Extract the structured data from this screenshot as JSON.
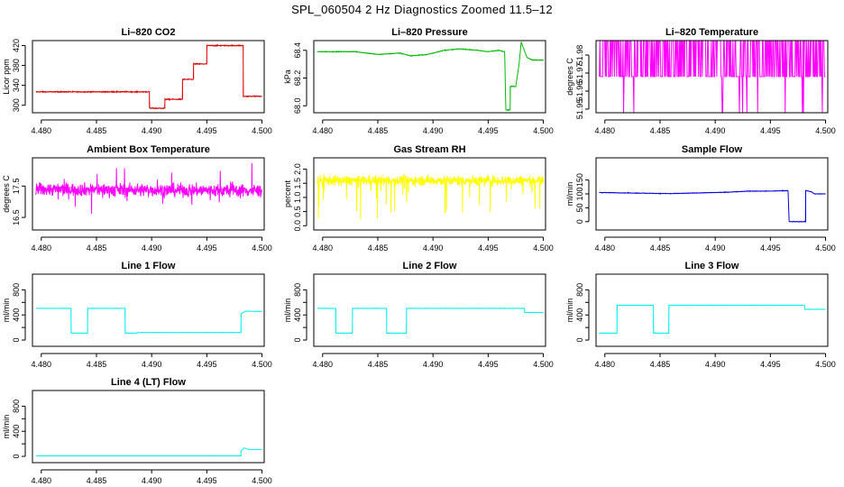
{
  "suptitle": "SPL_060504  2 Hz Diagnostics Zoomed 11.5–12",
  "x_tick_labels": [
    "4.480",
    "4.485",
    "4.490",
    "4.495",
    "4.500"
  ],
  "chart_data": [
    {
      "type": "line",
      "title": "Li–820 CO2",
      "ylabel": "Licor ppm",
      "color": "#dd0000",
      "xlim": [
        4.4792,
        4.5002
      ],
      "ylim": [
        285,
        430
      ],
      "yticks": [
        300,
        340,
        380,
        420
      ],
      "ytick_labels": [
        "300",
        "340",
        "380",
        "420"
      ],
      "noise": 1.5,
      "points": [
        [
          4.4795,
          327
        ],
        [
          4.4898,
          327
        ],
        [
          4.4898,
          294
        ],
        [
          4.4912,
          294
        ],
        [
          4.4912,
          312
        ],
        [
          4.4928,
          312
        ],
        [
          4.4928,
          352
        ],
        [
          4.4938,
          352
        ],
        [
          4.4938,
          383
        ],
        [
          4.495,
          383
        ],
        [
          4.495,
          420
        ],
        [
          4.4983,
          420
        ],
        [
          4.4983,
          318
        ],
        [
          4.5,
          318
        ]
      ]
    },
    {
      "type": "line",
      "title": "Li–820 Pressure",
      "ylabel": "kPa",
      "color": "#00bb00",
      "xlim": [
        4.4792,
        4.5002
      ],
      "ylim": [
        67.95,
        68.47
      ],
      "yticks": [
        68.0,
        68.2,
        68.4
      ],
      "ytick_labels": [
        "68.0",
        "68.2",
        "68.4"
      ],
      "noise": 0.004,
      "points": [
        [
          4.4795,
          68.39
        ],
        [
          4.483,
          68.39
        ],
        [
          4.485,
          68.37
        ],
        [
          4.487,
          68.38
        ],
        [
          4.488,
          68.36
        ],
        [
          4.4895,
          68.37
        ],
        [
          4.491,
          68.4
        ],
        [
          4.4925,
          68.41
        ],
        [
          4.494,
          68.4
        ],
        [
          4.495,
          68.39
        ],
        [
          4.496,
          68.4
        ],
        [
          4.4965,
          68.39
        ],
        [
          4.4966,
          67.97
        ],
        [
          4.497,
          67.97
        ],
        [
          4.497,
          68.14
        ],
        [
          4.4975,
          68.14
        ],
        [
          4.4978,
          68.3
        ],
        [
          4.498,
          68.46
        ],
        [
          4.4985,
          68.35
        ],
        [
          4.499,
          68.33
        ],
        [
          4.5,
          68.33
        ]
      ]
    },
    {
      "type": "line",
      "title": "Li–820 Temperature",
      "ylabel": "degrees C",
      "color": "#ff00ff",
      "xlim": [
        4.4792,
        4.5002
      ],
      "ylim": [
        51.948,
        51.988
      ],
      "yticks": [
        51.95,
        51.96,
        51.97,
        51.98
      ],
      "ytick_labels": [
        "51.95",
        "51.96",
        "51.97",
        "51.98"
      ],
      "quantized": [
        51.988,
        51.968,
        51.948
      ],
      "weights": [
        0.55,
        0.42,
        0.03
      ]
    },
    {
      "type": "line",
      "title": "Ambient Box Temperature",
      "ylabel": "degrees C",
      "color": "#ff00ff",
      "xlim": [
        4.4792,
        4.5002
      ],
      "ylim": [
        16.1,
        18.4
      ],
      "yticks": [
        16.5,
        17.5
      ],
      "ytick_labels": [
        "16.5",
        "17.5"
      ],
      "noise": 0.35,
      "points": [
        [
          4.4795,
          17.4
        ],
        [
          4.5,
          17.35
        ]
      ]
    },
    {
      "type": "line",
      "title": "Gas Stream RH",
      "ylabel": "percent",
      "color": "#ffff00",
      "xlim": [
        4.4792,
        4.5002
      ],
      "ylim": [
        -0.15,
        2.4
      ],
      "yticks": [
        0.0,
        0.5,
        1.0,
        1.5,
        2.0
      ],
      "ytick_labels": [
        "0.0",
        "0.5",
        "1.0",
        "1.5",
        "2.0"
      ],
      "noise": 0.3,
      "points": [
        [
          4.4795,
          1.6
        ],
        [
          4.5,
          1.6
        ]
      ]
    },
    {
      "type": "line",
      "title": "Sample Flow",
      "ylabel": "ml/min",
      "color": "#0000dd",
      "xlim": [
        4.4792,
        4.5002
      ],
      "ylim": [
        -30,
        230
      ],
      "yticks": [
        0,
        50,
        100,
        150
      ],
      "ytick_labels": [
        "0",
        "50",
        "100",
        "150"
      ],
      "noise": 1.5,
      "points": [
        [
          4.4795,
          105
        ],
        [
          4.486,
          101
        ],
        [
          4.488,
          103
        ],
        [
          4.491,
          106
        ],
        [
          4.493,
          110
        ],
        [
          4.495,
          110
        ],
        [
          4.4966,
          112
        ],
        [
          4.4967,
          0
        ],
        [
          4.4982,
          0
        ],
        [
          4.4982,
          112
        ],
        [
          4.4987,
          108
        ],
        [
          4.499,
          100
        ],
        [
          4.5,
          100
        ]
      ]
    },
    {
      "type": "line",
      "title": "Line 1 Flow",
      "ylabel": "ml/min",
      "color": "#00eeee",
      "xlim": [
        4.4792,
        4.5002
      ],
      "ylim": [
        -100,
        1050
      ],
      "yticks": [
        0,
        200,
        400,
        600,
        800
      ],
      "ytick_labels": [
        "0",
        "",
        "400",
        "",
        "800"
      ],
      "noise": 4,
      "points": [
        [
          4.4795,
          505
        ],
        [
          4.4827,
          505
        ],
        [
          4.4827,
          110
        ],
        [
          4.4842,
          110
        ],
        [
          4.4842,
          505
        ],
        [
          4.4876,
          505
        ],
        [
          4.4876,
          110
        ],
        [
          4.4887,
          110
        ],
        [
          4.4887,
          120
        ],
        [
          4.4981,
          120
        ],
        [
          4.4981,
          420
        ],
        [
          4.4985,
          460
        ],
        [
          4.5,
          455
        ]
      ]
    },
    {
      "type": "line",
      "title": "Line 2 Flow",
      "ylabel": "ml/min",
      "color": "#00eeee",
      "xlim": [
        4.4792,
        4.5002
      ],
      "ylim": [
        -100,
        1050
      ],
      "yticks": [
        0,
        200,
        400,
        600,
        800
      ],
      "ytick_labels": [
        "0",
        "",
        "400",
        "",
        "800"
      ],
      "noise": 4,
      "points": [
        [
          4.4795,
          505
        ],
        [
          4.4812,
          505
        ],
        [
          4.4812,
          110
        ],
        [
          4.4827,
          110
        ],
        [
          4.4827,
          505
        ],
        [
          4.4858,
          505
        ],
        [
          4.4858,
          110
        ],
        [
          4.4876,
          110
        ],
        [
          4.4876,
          505
        ],
        [
          4.4983,
          505
        ],
        [
          4.4983,
          440
        ],
        [
          4.5,
          440
        ]
      ]
    },
    {
      "type": "line",
      "title": "Line 3 Flow",
      "ylabel": "ml/min",
      "color": "#00eeee",
      "xlim": [
        4.4792,
        4.5002
      ],
      "ylim": [
        -100,
        1050
      ],
      "yticks": [
        0,
        200,
        400,
        600,
        800
      ],
      "ytick_labels": [
        "0",
        "",
        "400",
        "",
        "800"
      ],
      "noise": 4,
      "points": [
        [
          4.4795,
          110
        ],
        [
          4.4811,
          110
        ],
        [
          4.4811,
          555
        ],
        [
          4.4844,
          555
        ],
        [
          4.4844,
          110
        ],
        [
          4.4858,
          110
        ],
        [
          4.4858,
          555
        ],
        [
          4.4981,
          555
        ],
        [
          4.4981,
          490
        ],
        [
          4.5,
          490
        ]
      ]
    },
    {
      "type": "line",
      "title": "Line 4 (LT) Flow",
      "ylabel": "ml/min",
      "color": "#00eeee",
      "xlim": [
        4.4792,
        4.5002
      ],
      "ylim": [
        -100,
        1050
      ],
      "yticks": [
        0,
        200,
        400,
        600,
        800
      ],
      "ytick_labels": [
        "0",
        "",
        "400",
        "",
        "800"
      ],
      "noise": 1,
      "points": [
        [
          4.4795,
          8
        ],
        [
          4.4981,
          8
        ],
        [
          4.4981,
          90
        ],
        [
          4.4984,
          135
        ],
        [
          4.4988,
          110
        ],
        [
          4.5,
          110
        ]
      ]
    }
  ]
}
